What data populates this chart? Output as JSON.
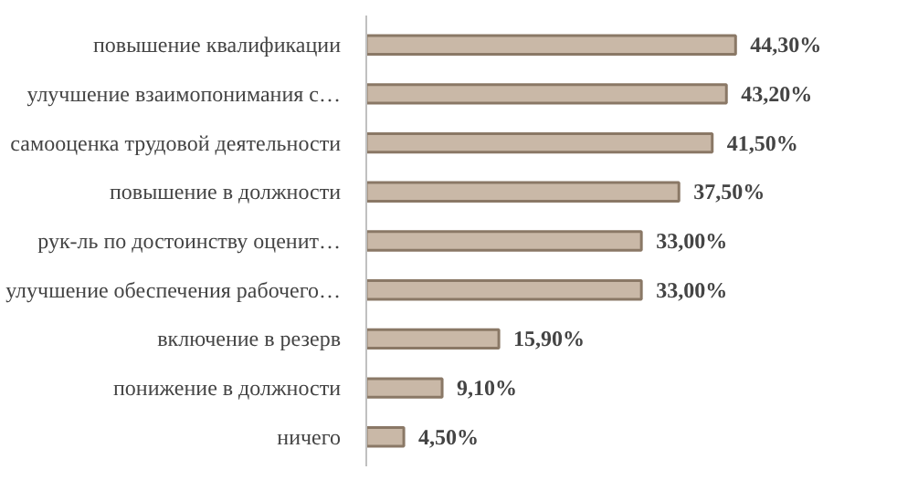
{
  "chart_data": {
    "type": "bar",
    "orientation": "horizontal",
    "categories": [
      "повышение квалификации",
      "улучшение взаимопонимания с…",
      "самооценка трудовой деятельности",
      "повышение в должности",
      "рук-ль по достоинству оценит…",
      "улучшение обеспечения рабочего…",
      "включение в резерв",
      "понижение в должности",
      "ничего"
    ],
    "values": [
      44.3,
      43.2,
      41.5,
      37.5,
      33.0,
      33.0,
      15.9,
      9.1,
      4.5
    ],
    "value_labels": [
      "44,30%",
      "43,20%",
      "41,50%",
      "37,50%",
      "33,00%",
      "33,00%",
      "15,90%",
      "9,10%",
      "4,50%"
    ],
    "color": "#c9b8a7"
  }
}
